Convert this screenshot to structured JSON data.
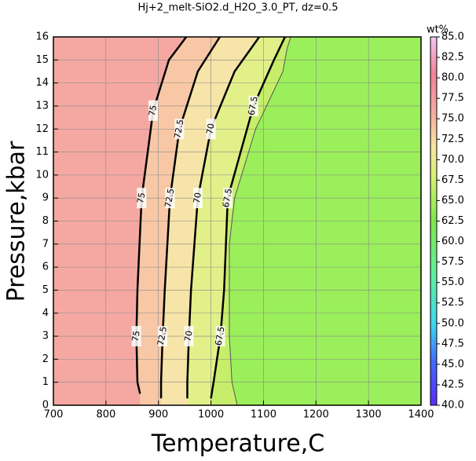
{
  "chart_data": {
    "type": "contour",
    "title": "Hj+2_melt-SiO2.d_H2O_3.0_PT, dz=0.5",
    "x_label": "Temperature,C",
    "y_label": "Pressure,kbar",
    "xlim": [
      700,
      1400
    ],
    "ylim": [
      0,
      16
    ],
    "xticks": [
      700,
      800,
      900,
      1000,
      1100,
      1200,
      1300,
      1400
    ],
    "yticks": [
      0,
      1,
      2,
      3,
      4,
      5,
      6,
      7,
      8,
      9,
      10,
      11,
      12,
      13,
      14,
      15,
      16
    ],
    "grid": true,
    "background": "#f5a8a2",
    "series": [
      {
        "level": 75,
        "color": "#000000",
        "fill": "#f8c8a6",
        "x": [
          865,
          860,
          858,
          860,
          868,
          890,
          920,
          953
        ],
        "y": [
          0.5,
          1,
          3,
          5,
          9,
          12.8,
          15,
          16
        ]
      },
      {
        "level": 72.5,
        "color": "#000000",
        "fill": "#f6e4a8",
        "x": [
          905,
          905,
          908,
          912,
          922,
          940,
          975,
          1017
        ],
        "y": [
          0.3,
          1,
          3,
          5,
          9,
          12,
          14.5,
          16
        ]
      },
      {
        "level": 70,
        "color": "#000000",
        "fill": "#e2f08a",
        "x": [
          955,
          955,
          958,
          962,
          975,
          1000,
          1045,
          1092
        ],
        "y": [
          0.3,
          1,
          3,
          5,
          9,
          12,
          14.5,
          16
        ]
      },
      {
        "level": 67.5,
        "color": "#000000",
        "fill": "#c6ee6a",
        "x": [
          1000,
          1005,
          1018,
          1025,
          1032,
          1081,
          1120,
          1141
        ],
        "y": [
          0.3,
          1,
          3,
          5,
          9,
          13,
          15,
          16
        ]
      },
      {
        "color": "#555555",
        "fill": "#9bef5a",
        "x": [
          1050,
          1040,
          1035,
          1035,
          1045,
          1085,
          1137,
          1145,
          1152
        ],
        "y": [
          0,
          1,
          3,
          7,
          9,
          12,
          14.5,
          15.5,
          16
        ]
      }
    ],
    "colorbar_label": "wt%",
    "clim": [
      40,
      85
    ],
    "cticks": [
      {
        "value": 40,
        "label": "40.0"
      },
      42.5,
      {
        "value": 45,
        "label": "45.0"
      },
      47.5,
      {
        "value": 50,
        "label": "50.0"
      },
      52.5,
      {
        "value": 55,
        "label": "55.0"
      },
      57.5,
      {
        "value": 60,
        "label": "60.0"
      },
      62.5,
      {
        "value": 65,
        "label": "65.0"
      },
      67.5,
      {
        "value": 70,
        "label": "70.0"
      },
      72.5,
      {
        "value": 75,
        "label": "75.0"
      },
      77.5,
      {
        "value": 80,
        "label": "80.0"
      },
      82.5,
      {
        "value": 85,
        "label": "85.0"
      }
    ]
  }
}
